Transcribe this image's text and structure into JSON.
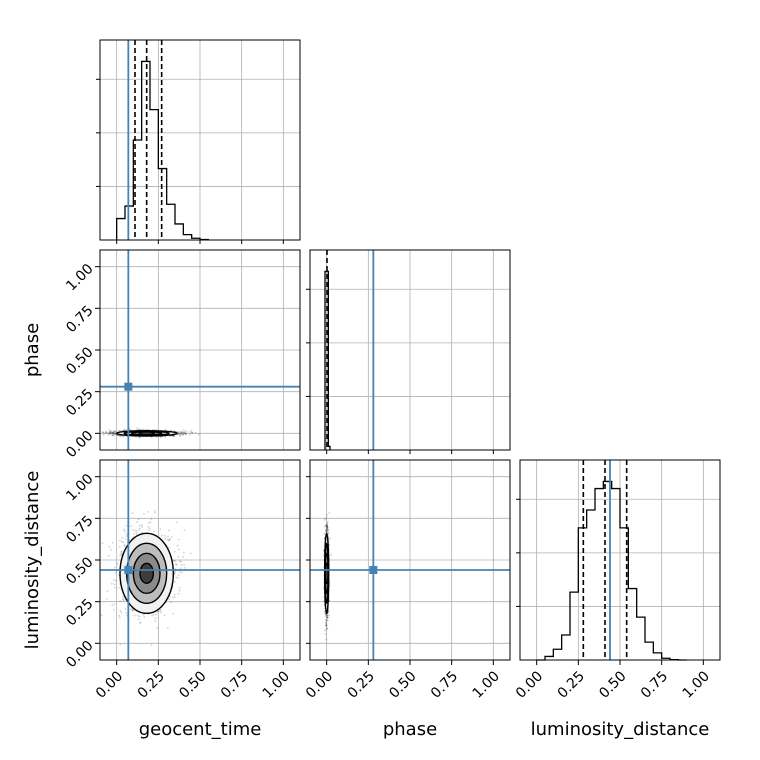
{
  "chart_data": {
    "type": "corner",
    "grid": true,
    "tick_labels": [
      "0.00",
      "0.25",
      "0.50",
      "0.75",
      "1.00"
    ],
    "truth_color": "#4682b4",
    "parameters": [
      {
        "name": "geocent_time",
        "xlabel": "geocent_time",
        "ylabel": "",
        "truth": 0.07,
        "range": [
          -0.1,
          1.1
        ]
      },
      {
        "name": "phase",
        "xlabel": "phase",
        "ylabel": "phase",
        "truth": 0.28,
        "range": [
          -0.1,
          1.1
        ]
      },
      {
        "name": "luminosity_distance",
        "xlabel": "luminosity_distance",
        "ylabel": "luminosity_distance",
        "truth": 0.44,
        "range": [
          -0.1,
          1.1
        ]
      }
    ],
    "histograms": {
      "geocent_time": {
        "bin_edges": [
          0.0,
          0.05,
          0.1,
          0.15,
          0.2,
          0.25,
          0.3,
          0.35,
          0.4,
          0.45,
          0.5,
          0.55
        ],
        "counts": [
          0.12,
          0.19,
          0.56,
          1.0,
          0.73,
          0.4,
          0.2,
          0.09,
          0.03,
          0.01,
          0.003
        ],
        "quantiles": [
          0.11,
          0.18,
          0.27
        ]
      },
      "phase": {
        "bin_edges": [
          -0.01,
          0.0,
          0.01,
          0.02
        ],
        "counts": [
          1.0,
          1.0,
          0.02
        ],
        "quantiles": [
          0.002
        ]
      },
      "luminosity_distance": {
        "bin_edges": [
          0.0,
          0.05,
          0.1,
          0.15,
          0.2,
          0.25,
          0.3,
          0.35,
          0.4,
          0.45,
          0.5,
          0.55,
          0.6,
          0.65,
          0.7,
          0.75,
          0.8,
          0.85,
          0.9
        ],
        "counts": [
          0.0,
          0.02,
          0.06,
          0.14,
          0.38,
          0.74,
          0.84,
          0.96,
          1.0,
          0.96,
          0.74,
          0.4,
          0.24,
          0.1,
          0.04,
          0.01,
          0.002,
          0.0
        ],
        "quantiles": [
          0.28,
          0.41,
          0.54
        ]
      }
    },
    "scatter_2d": [
      {
        "x": "geocent_time",
        "y": "phase",
        "center": [
          0.18,
          0.0
        ],
        "spread": [
          0.09,
          0.008
        ]
      },
      {
        "x": "geocent_time",
        "y": "luminosity_distance",
        "center": [
          0.18,
          0.42
        ],
        "spread": [
          0.08,
          0.12
        ]
      },
      {
        "x": "phase",
        "y": "luminosity_distance",
        "center": [
          0.0,
          0.42
        ],
        "spread": [
          0.006,
          0.12
        ]
      }
    ]
  }
}
